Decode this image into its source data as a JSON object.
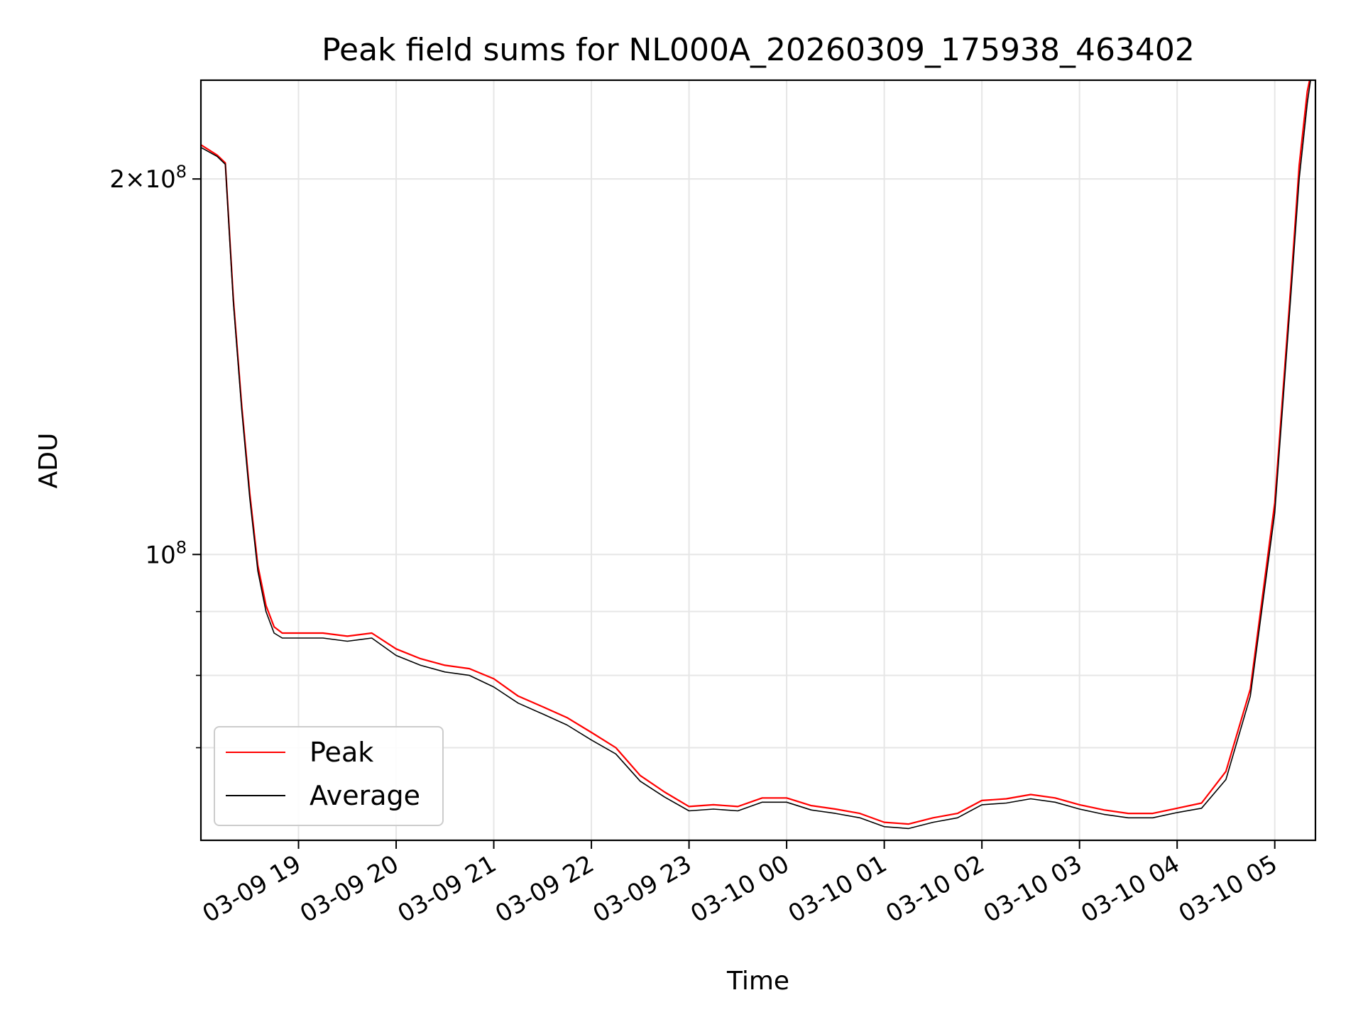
{
  "chart_data": {
    "type": "line",
    "title": "Peak field sums for NL000A_20260309_175938_463402",
    "xlabel": "Time",
    "ylabel": "ADU",
    "yscale": "log",
    "ylim": [
      59000000,
      240000000
    ],
    "xlim": [
      "03-09 18:00",
      "03-10 05:25"
    ],
    "grid": true,
    "legend_position": "lower-left",
    "x_ticks": [
      "03-09 19",
      "03-09 20",
      "03-09 21",
      "03-09 22",
      "03-09 23",
      "03-10 00",
      "03-10 01",
      "03-10 02",
      "03-10 03",
      "03-10 04",
      "03-10 05"
    ],
    "y_ticks": [
      {
        "value": 200000000,
        "base": "2×10",
        "exp": "8"
      },
      {
        "value": 100000000,
        "base": "10",
        "exp": "8"
      }
    ],
    "y_minor_ticks": [
      70000000,
      80000000,
      90000000
    ],
    "x": [
      "03-09 18:00",
      "03-09 18:10",
      "03-09 18:15",
      "03-09 18:20",
      "03-09 18:25",
      "03-09 18:30",
      "03-09 18:35",
      "03-09 18:40",
      "03-09 18:45",
      "03-09 18:50",
      "03-09 19:00",
      "03-09 19:15",
      "03-09 19:30",
      "03-09 19:45",
      "03-09 20:00",
      "03-09 20:15",
      "03-09 20:30",
      "03-09 20:45",
      "03-09 21:00",
      "03-09 21:15",
      "03-09 21:30",
      "03-09 21:45",
      "03-09 22:00",
      "03-09 22:15",
      "03-09 22:30",
      "03-09 22:45",
      "03-09 23:00",
      "03-09 23:15",
      "03-09 23:30",
      "03-09 23:45",
      "03-10 00:00",
      "03-10 00:15",
      "03-10 00:30",
      "03-10 00:45",
      "03-10 01:00",
      "03-10 01:15",
      "03-10 01:30",
      "03-10 01:45",
      "03-10 02:00",
      "03-10 02:15",
      "03-10 02:30",
      "03-10 02:45",
      "03-10 03:00",
      "03-10 03:15",
      "03-10 03:30",
      "03-10 03:45",
      "03-10 04:00",
      "03-10 04:15",
      "03-10 04:30",
      "03-10 04:45",
      "03-10 05:00",
      "03-10 05:10",
      "03-10 05:15",
      "03-10 05:20",
      "03-10 05:22"
    ],
    "series": [
      {
        "name": "Peak",
        "color": "#ff0000",
        "values": [
          213000000,
          209000000,
          206000000,
          160000000,
          132000000,
          112000000,
          98000000,
          91000000,
          87500000,
          86500000,
          86500000,
          86500000,
          86000000,
          86500000,
          84000000,
          82500000,
          81500000,
          81000000,
          79500000,
          77000000,
          75500000,
          74000000,
          72000000,
          70000000,
          66500000,
          64500000,
          62800000,
          63000000,
          62800000,
          63800000,
          63800000,
          62900000,
          62500000,
          62000000,
          61000000,
          60800000,
          61500000,
          62000000,
          63500000,
          63700000,
          64200000,
          63800000,
          63000000,
          62400000,
          62000000,
          62000000,
          62600000,
          63200000,
          67000000,
          78000000,
          110000000,
          165000000,
          205000000,
          235000000,
          242000000
        ]
      },
      {
        "name": "Average",
        "color": "#000000",
        "values": [
          212000000,
          208500000,
          205500000,
          159000000,
          131000000,
          111000000,
          97000000,
          90000000,
          86500000,
          85700000,
          85700000,
          85700000,
          85200000,
          85700000,
          83000000,
          81500000,
          80500000,
          80000000,
          78300000,
          76000000,
          74500000,
          73000000,
          71000000,
          69200000,
          65800000,
          63900000,
          62300000,
          62500000,
          62300000,
          63300000,
          63300000,
          62400000,
          62000000,
          61500000,
          60500000,
          60300000,
          61000000,
          61500000,
          63000000,
          63200000,
          63700000,
          63300000,
          62500000,
          61900000,
          61500000,
          61500000,
          62100000,
          62600000,
          66000000,
          77000000,
          108000000,
          162000000,
          200000000,
          230000000,
          240000000
        ]
      }
    ]
  }
}
